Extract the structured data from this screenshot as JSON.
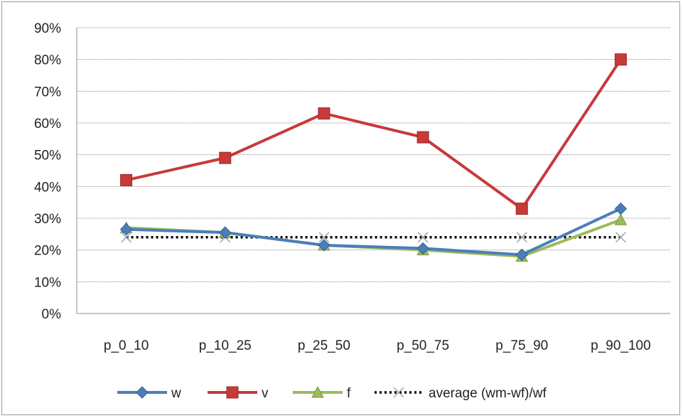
{
  "chart_data": {
    "type": "line",
    "title": "",
    "xlabel": "",
    "ylabel": "",
    "categories": [
      "p_0_10",
      "p_10_25",
      "p_25_50",
      "p_50_75",
      "p_75_90",
      "p_90_100"
    ],
    "ylim": [
      0,
      0.9
    ],
    "yticks": [
      "0%",
      "10%",
      "20%",
      "30%",
      "40%",
      "50%",
      "60%",
      "70%",
      "80%",
      "90%"
    ],
    "grid": true,
    "legend_position": "bottom",
    "series": [
      {
        "name": "w",
        "color": "#4a7ebb",
        "marker": "diamond",
        "line": "solid",
        "values": [
          0.265,
          0.255,
          0.215,
          0.205,
          0.185,
          0.33
        ]
      },
      {
        "name": "v",
        "color": "#c8393a",
        "marker": "square",
        "line": "solid",
        "values": [
          0.42,
          0.49,
          0.63,
          0.555,
          0.33,
          0.8
        ]
      },
      {
        "name": "f",
        "color": "#9bbb59",
        "marker": "triangle",
        "line": "solid",
        "values": [
          0.27,
          0.255,
          0.215,
          0.2,
          0.18,
          0.295
        ]
      },
      {
        "name": "average (wm-wf)/wf",
        "color": "#000000",
        "marker": "x",
        "line": "dotted",
        "values": [
          0.24,
          0.24,
          0.24,
          0.24,
          0.24,
          0.24
        ]
      }
    ]
  }
}
